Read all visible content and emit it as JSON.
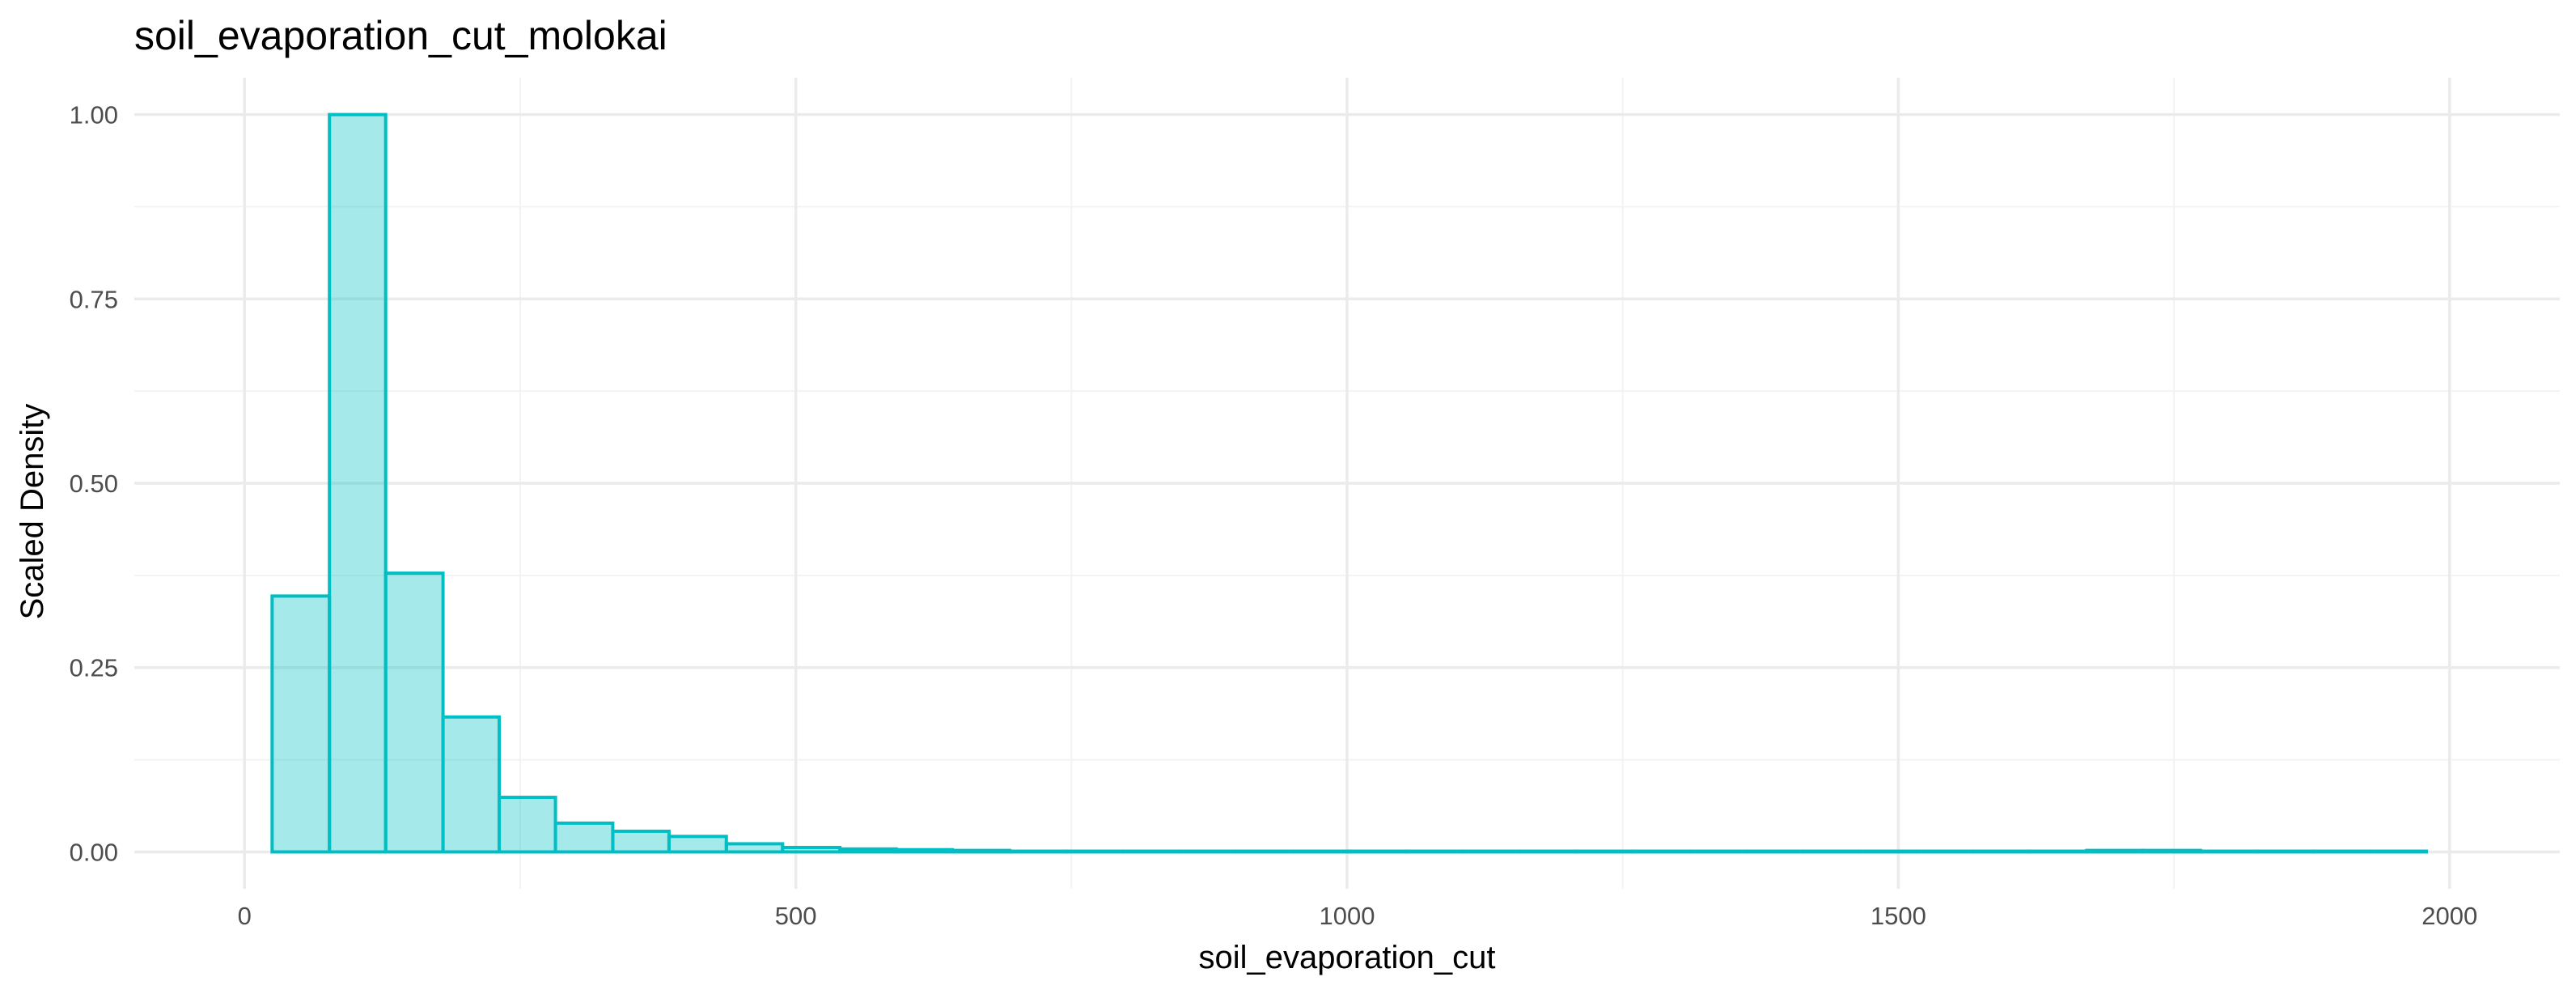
{
  "chart_data": {
    "type": "histogram",
    "title": "soil_evaporation_cut_molokai",
    "xlabel": "soil_evaporation_cut",
    "ylabel": "Scaled Density",
    "xlim": [
      -100,
      2100
    ],
    "ylim": [
      -0.05,
      1.05
    ],
    "x_ticks": [
      0,
      500,
      1000,
      1500,
      2000
    ],
    "x_tick_labels": [
      "0",
      "500",
      "1000",
      "1500",
      "2000"
    ],
    "y_ticks": [
      0,
      0.25,
      0.5,
      0.75,
      1.0
    ],
    "y_tick_labels": [
      "0.00",
      "0.25",
      "0.50",
      "0.75",
      "1.00"
    ],
    "grid": true,
    "legend": "none",
    "bin_edges": [
      25,
      77,
      128,
      180,
      231,
      282,
      334,
      385,
      437,
      488,
      540,
      591,
      642,
      694,
      745,
      797,
      848,
      899,
      951,
      1002,
      1054,
      1105,
      1157,
      1208,
      1259,
      1311,
      1362,
      1414,
      1465,
      1517,
      1568,
      1619,
      1671,
      1722,
      1774,
      1825,
      1877,
      1928,
      1979
    ],
    "values": [
      0.347,
      1.0,
      0.378,
      0.183,
      0.074,
      0.039,
      0.028,
      0.021,
      0.011,
      0.006,
      0.004,
      0.003,
      0.002,
      0.001,
      0.001,
      0.001,
      0.001,
      0.001,
      0.001,
      0.001,
      0.001,
      0.001,
      0.001,
      0.001,
      0.001,
      0.001,
      0.001,
      0.001,
      0.001,
      0.001,
      0.001,
      0.001,
      0.002,
      0.002,
      0.001,
      0.001,
      0.001,
      0.001
    ],
    "colors": {
      "fill": "#00BFC4",
      "fill_opacity": 0.35,
      "stroke": "#00BFC4"
    }
  }
}
